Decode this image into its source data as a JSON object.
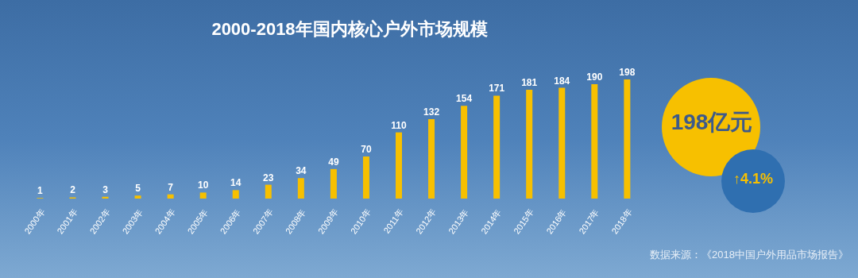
{
  "chart_data": {
    "type": "bar",
    "title": "2000-2018年国内核心户外市场规模",
    "categories": [
      "2000年",
      "2001年",
      "2002年",
      "2003年",
      "2004年",
      "2005年",
      "2006年",
      "2007年",
      "2008年",
      "2009年",
      "2010年",
      "2011年",
      "2012年",
      "2013年",
      "2014年",
      "2015年",
      "2016年",
      "2017年",
      "2018年"
    ],
    "values": [
      1,
      2,
      3,
      5,
      7,
      10,
      14,
      23,
      34,
      49,
      70,
      110,
      132,
      154,
      171,
      181,
      184,
      190,
      198
    ],
    "color": "#f7c000",
    "data_labels": true,
    "annotations": [
      "198亿元",
      "↑4.1%",
      "数据来源：《2018中国户外用品市场报告》"
    ]
  }
}
